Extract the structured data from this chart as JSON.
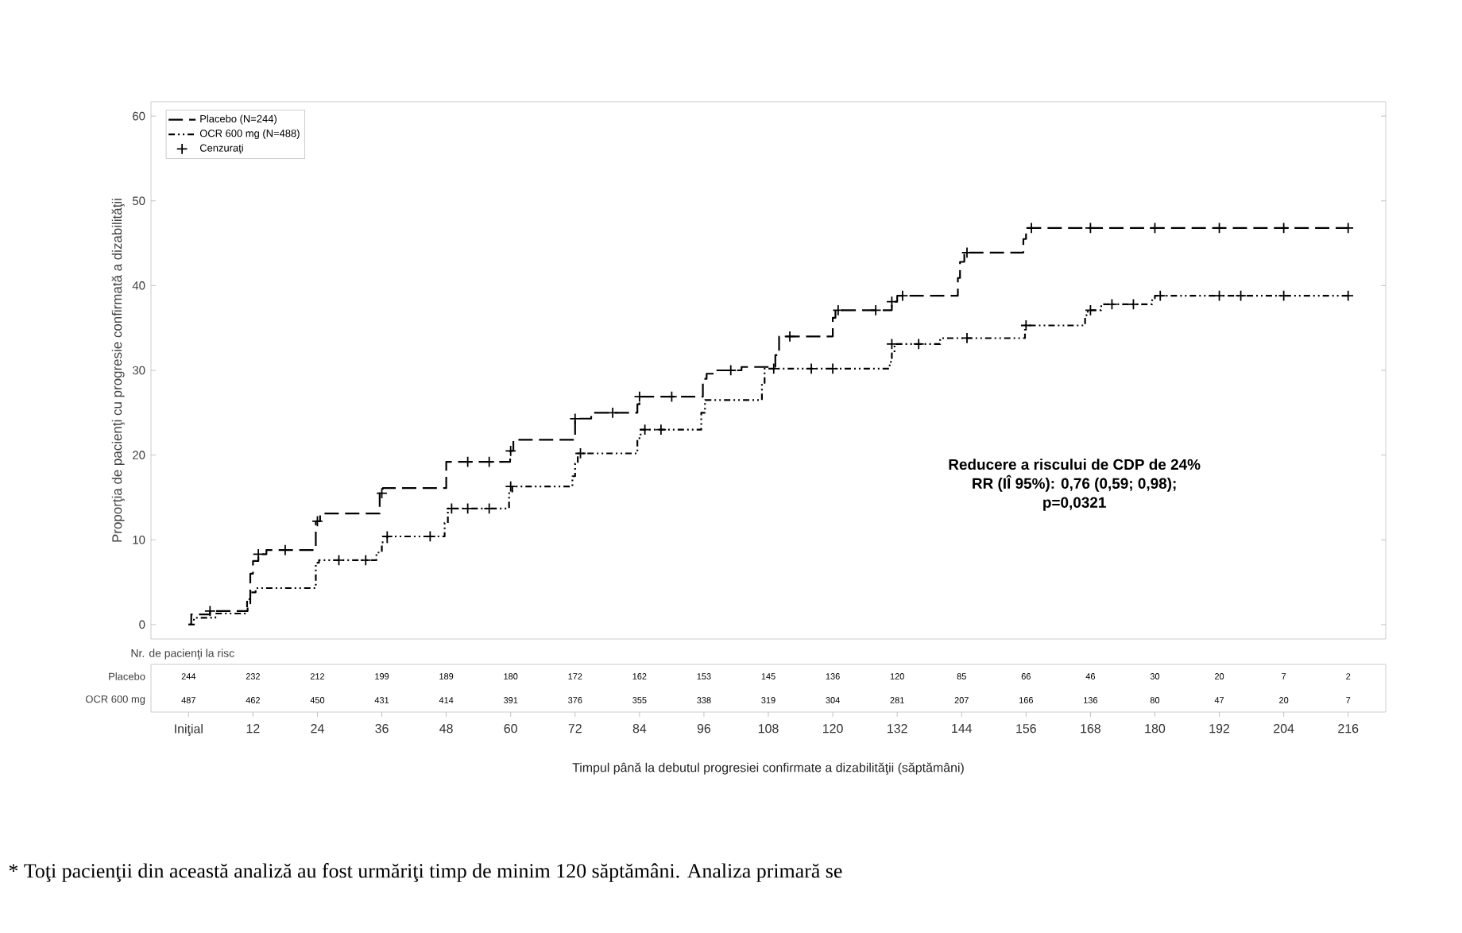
{
  "chart_data": {
    "type": "step",
    "xlabel": "Timpul până la debutul progresiei confirmate a dizabilităţii (săptămâni)",
    "ylabel": "Proporţia de pacienţi cu progresie confirmată a dizabilităţii",
    "xlim": [
      -7,
      223
    ],
    "ylim": [
      -1.7,
      61.7
    ],
    "xticks": [
      {
        "value": 0,
        "label": "Iniţial"
      },
      12,
      24,
      36,
      48,
      60,
      72,
      84,
      96,
      108,
      120,
      132,
      144,
      156,
      168,
      180,
      192,
      204,
      216
    ],
    "yticks": [
      0,
      10,
      20,
      30,
      40,
      50,
      60
    ],
    "legend": "top left",
    "grid": false,
    "series": [
      {
        "name": "Placebo (N=244)",
        "type": "step",
        "color": "#000000",
        "line_style": "dashed",
        "x": [
          0,
          0.5,
          4,
          11,
          11.5,
          12,
          13,
          14.5,
          23.7,
          24.5,
          35.6,
          36.2,
          48,
          59.9,
          60.5,
          72,
          75,
          83.6,
          84,
          95.8,
          96.5,
          98,
          103,
          109.3,
          110,
          120,
          120.5,
          131,
          132,
          143.3,
          143.7,
          144.5,
          155.5,
          156,
          216
        ],
        "values": [
          0,
          1.2,
          1.6,
          2.5,
          6,
          7.5,
          8.3,
          8.8,
          12.2,
          13.1,
          15.5,
          16.1,
          19.2,
          20.5,
          21.8,
          24.3,
          25,
          26,
          26.9,
          29,
          29.6,
          30,
          30.4,
          31.8,
          34,
          36.2,
          37.1,
          38.1,
          38.8,
          40.9,
          42.8,
          43.9,
          45.5,
          46.8,
          46.8
        ]
      },
      {
        "name": "OCR 600 mg (N=488)",
        "type": "step",
        "color": "#000000",
        "line_style": "dashdot",
        "x": [
          0,
          1,
          5,
          10.9,
          11.5,
          12.5,
          23.7,
          24.3,
          35,
          36,
          37,
          47.7,
          48.3,
          59.7,
          60.3,
          71.5,
          72,
          72.5,
          83.6,
          84.2,
          95.5,
          96.2,
          106.8,
          107.3,
          130.6,
          131,
          131.5,
          140,
          155.8,
          167,
          167.5,
          170,
          179.5,
          180,
          216
        ],
        "values": [
          0,
          0.8,
          1.3,
          3,
          3.8,
          4.3,
          7.3,
          7.6,
          8.5,
          9.7,
          10.4,
          12,
          13.7,
          15.5,
          16.3,
          17.5,
          19,
          20.2,
          22,
          23,
          25,
          26.5,
          28.5,
          30.2,
          31,
          32,
          33.1,
          33.8,
          35.3,
          36.5,
          37.1,
          37.8,
          38.5,
          38.8,
          38.8
        ]
      },
      {
        "name": "Cenzuraţi",
        "type": "scatter",
        "color": "#000000",
        "marker": "cross",
        "x": [
          4,
          13,
          18,
          24,
          36,
          52,
          56,
          60,
          72,
          79,
          84,
          90,
          101,
          112,
          121,
          128,
          131,
          133,
          145,
          157,
          168,
          180,
          192,
          204,
          216,
          28,
          33,
          37,
          45,
          49,
          52,
          56,
          60,
          73,
          85,
          88,
          109,
          116,
          120,
          131,
          136,
          145,
          156,
          168,
          172,
          176,
          181,
          192,
          196,
          204,
          216
        ],
        "values": [
          1.6,
          8.3,
          8.8,
          12.2,
          15.5,
          19.2,
          19.2,
          20.5,
          24.3,
          25,
          26.9,
          26.9,
          30,
          34,
          37.1,
          37.1,
          38.1,
          38.8,
          43.9,
          46.8,
          46.8,
          46.8,
          46.8,
          46.8,
          46.8,
          7.6,
          7.6,
          10.4,
          10.4,
          13.7,
          13.7,
          13.7,
          16.3,
          20.2,
          23,
          23,
          30.2,
          30.2,
          30.2,
          33.1,
          33.1,
          33.8,
          35.3,
          37.1,
          37.8,
          37.8,
          38.8,
          38.8,
          38.8,
          38.8,
          38.8
        ]
      }
    ],
    "annotations": [
      "Nr. de pacienţi la risc",
      "Placebo",
      "244",
      "232",
      "212",
      "199",
      "189",
      "180",
      "172",
      "162",
      "153",
      "145",
      "136",
      "120",
      "85",
      "66",
      "46",
      "30",
      "20",
      "7",
      "2",
      "OCR 600 mg",
      "487",
      "462",
      "450",
      "431",
      "414",
      "391",
      "376",
      "355",
      "338",
      "319",
      "304",
      "281",
      "207",
      "166",
      "136",
      "80",
      "47",
      "20",
      "7",
      "Reducere a riscului de CDP de 24%",
      "RR (IÎ 95%): 0,76 (0,59; 0,98);",
      "p=0,0321",
      "* Toţi pacienţii din această analiză au fost urmăriţi timp de minim 120 săptămâni. Analiza primară se"
    ]
  }
}
